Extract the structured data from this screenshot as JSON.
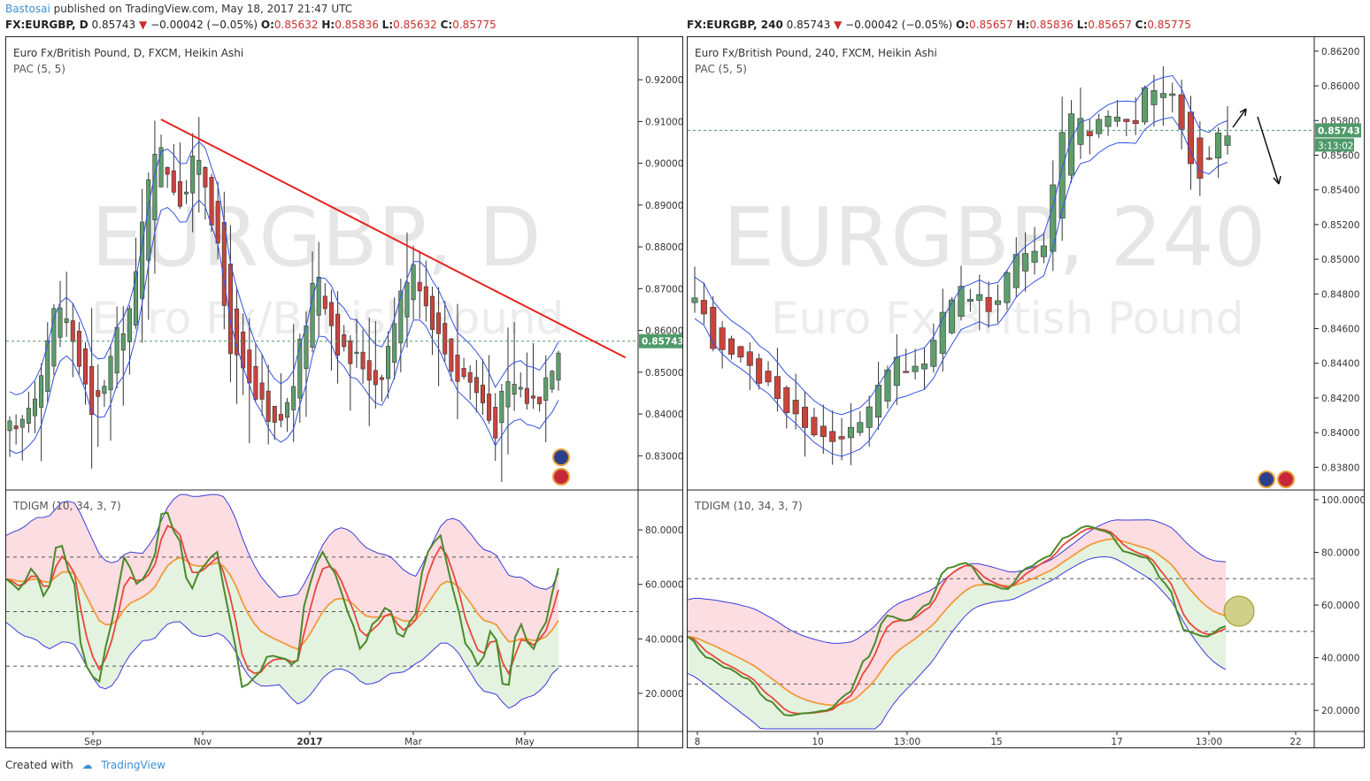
{
  "header": {
    "user": "Bastosai",
    "published": "published on TradingView.com, May 18, 2017 21:47 UTC"
  },
  "left_symbol": {
    "symbol": "FX:EURGBP, D",
    "price": "0.85743",
    "change": "−0.00042 (−0.05%)",
    "o_label": "O:",
    "o": "0.85632",
    "h_label": "H:",
    "h": "0.85836",
    "l_label": "L:",
    "l": "0.85632",
    "c_label": "C:",
    "c": "0.85775"
  },
  "right_symbol": {
    "symbol": "FX:EURGBP, 240",
    "price": "0.85743",
    "change": "−0.00042 (−0.05%)",
    "o_label": "O:",
    "o": "0.85657",
    "h_label": "H:",
    "h": "0.85836",
    "l_label": "L:",
    "l": "0.85657",
    "c_label": "C:",
    "c": "0.85775"
  },
  "footer": {
    "created_with": "Created with",
    "brand": "TradingView"
  },
  "colors": {
    "up_candle": "#5e9e6c",
    "down_candle": "#c9443c",
    "pac_line": "#3552e0",
    "trendline": "#e52420",
    "rsi_green": "#4a8a2a",
    "signal_red": "#e8473d",
    "mid_orange": "#f39a3a",
    "band_blue": "#3b3bdc",
    "fill_red": "#fcdde1",
    "fill_green": "#e4f2e0"
  },
  "chart_data": [
    {
      "id": "left_price",
      "type": "candlestick",
      "title": "Euro Fx/British Pound, D, FXCM, Heikin Ashi",
      "indicator": "PAC (5, 5)",
      "watermark": "EURGBP, D",
      "watermark_sub": "Euro Fx/British Pound",
      "ylim": [
        0.8235,
        0.9285
      ],
      "yticks": [
        "0.92000",
        "0.91000",
        "0.90000",
        "0.89000",
        "0.88000",
        "0.87000",
        "0.86000",
        "0.85000",
        "0.84000",
        "0.83000"
      ],
      "ytick_values": [
        0.92,
        0.91,
        0.9,
        0.89,
        0.88,
        0.87,
        0.86,
        0.85,
        0.84,
        0.83
      ],
      "xticks": [
        "Sep",
        "Nov",
        "2017",
        "Mar",
        "May"
      ],
      "last_price": "0.85743",
      "last_value": 0.85743,
      "trendline": {
        "from": [
          0.245,
          0.9105
        ],
        "to": [
          0.98,
          0.8535
        ]
      },
      "series": [
        0.836,
        0.834,
        0.838,
        0.842,
        0.846,
        0.852,
        0.858,
        0.864,
        0.866,
        0.862,
        0.858,
        0.852,
        0.846,
        0.838,
        0.843,
        0.848,
        0.853,
        0.858,
        0.862,
        0.865,
        0.872,
        0.885,
        0.898,
        0.905,
        0.902,
        0.899,
        0.895,
        0.892,
        0.894,
        0.899,
        0.902,
        0.896,
        0.888,
        0.878,
        0.866,
        0.857,
        0.852,
        0.849,
        0.846,
        0.843,
        0.841,
        0.837,
        0.836,
        0.839,
        0.842,
        0.848,
        0.855,
        0.863,
        0.871,
        0.874,
        0.868,
        0.862,
        0.857,
        0.854,
        0.853,
        0.853,
        0.852,
        0.85,
        0.848,
        0.851,
        0.856,
        0.863,
        0.868,
        0.874,
        0.877,
        0.872,
        0.866,
        0.863,
        0.858,
        0.855,
        0.852,
        0.849,
        0.849,
        0.848,
        0.845,
        0.843,
        0.839,
        0.837,
        0.843,
        0.846,
        0.847,
        0.846,
        0.844,
        0.843,
        0.845,
        0.849,
        0.853,
        0.857
      ]
    },
    {
      "id": "left_tdi",
      "type": "line",
      "title": "TDIGM (10, 34, 3, 7)",
      "ylim": [
        6,
        94
      ],
      "yticks": [
        "80.0000",
        "60.0000",
        "40.0000",
        "20.0000"
      ],
      "ytick_values": [
        80,
        60,
        40,
        20
      ],
      "dashed_levels": [
        70,
        50,
        30
      ]
    },
    {
      "id": "right_price",
      "type": "candlestick",
      "title": "Euro Fx/British Pound, 240, FXCM, Heikin Ashi",
      "indicator": "PAC (5, 5)",
      "watermark": "EURGBP, 240",
      "watermark_sub": "Euro Fx/British Pound",
      "ylim": [
        0.8371,
        0.8624
      ],
      "yticks": [
        "0.86200",
        "0.86000",
        "0.85800",
        "0.85600",
        "0.85400",
        "0.85200",
        "0.85000",
        "0.84800",
        "0.84600",
        "0.84400",
        "0.84200",
        "0.84000",
        "0.83800"
      ],
      "ytick_values": [
        0.862,
        0.86,
        0.858,
        0.856,
        0.854,
        0.852,
        0.85,
        0.848,
        0.846,
        0.844,
        0.842,
        0.84,
        0.838
      ],
      "xticks": [
        "8",
        "10",
        "13:00",
        "15",
        "17",
        "13:00",
        "22"
      ],
      "last_price": "0.85743",
      "countdown": "3:13:02",
      "last_value": 0.85743,
      "series": [
        0.8475,
        0.8465,
        0.8452,
        0.8445,
        0.8442,
        0.844,
        0.8436,
        0.8432,
        0.8426,
        0.842,
        0.8415,
        0.841,
        0.8404,
        0.8398,
        0.8396,
        0.8397,
        0.8398,
        0.84,
        0.8404,
        0.8412,
        0.8425,
        0.8436,
        0.844,
        0.8438,
        0.844,
        0.8442,
        0.8453,
        0.8468,
        0.8478,
        0.8483,
        0.8478,
        0.8476,
        0.8472,
        0.848,
        0.849,
        0.85,
        0.8505,
        0.8505,
        0.851,
        0.854,
        0.8572,
        0.858,
        0.8582,
        0.8575,
        0.8578,
        0.8582,
        0.8584,
        0.858,
        0.8582,
        0.8595,
        0.8598,
        0.8596,
        0.8592,
        0.8575,
        0.8555,
        0.8545,
        0.856,
        0.857,
        0.8575
      ]
    },
    {
      "id": "right_tdi",
      "type": "line",
      "title": "TDIGM (10, 34, 3, 7)",
      "ylim": [
        12,
        103
      ],
      "yticks": [
        "100.0000",
        "80.0000",
        "60.0000",
        "40.0000",
        "20.0000"
      ],
      "ytick_values": [
        100,
        80,
        60,
        40,
        20
      ],
      "dashed_levels": [
        70,
        50,
        30
      ]
    }
  ]
}
